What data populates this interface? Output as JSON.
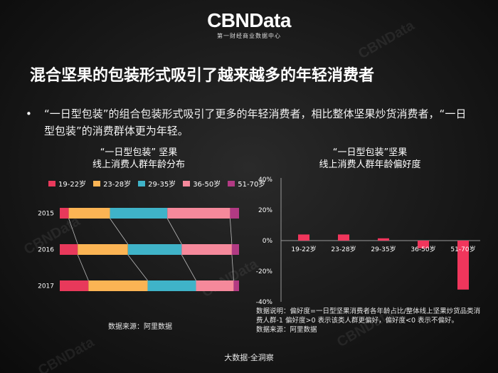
{
  "header": {
    "brand": "CBNData",
    "brand_sub": "第一财经商业数据中心"
  },
  "slide": {
    "title": "混合坚果的包装形式吸引了越来越多的年轻消费者",
    "bullet": "“一日型包装”的组合包装形式吸引了更多的年轻消费者，相比整体坚果炒货消费者，“一日型包装”的消费群体更为年轻。",
    "footer": "大数据·全洞察"
  },
  "left_chart": {
    "title_line1": "“一日型包装”  坚果",
    "title_line2": "线上消费人群年龄分布",
    "source": "数据来源：阿里数据"
  },
  "right_chart": {
    "title_line1": "“一日型包装”坚果",
    "title_line2": "线上消费人群年龄偏好度",
    "note": "数据说明：偏好度=一日型坚果消费者各年龄占比/整体线上坚果炒货品类消费人群-1 偏好度>0 表示该类人群更偏好，偏好度<0 表示不偏好。",
    "source": "数据来源：阿里数据"
  },
  "colors": {
    "19-22岁": "#e8395b",
    "23-28岁": "#fbb454",
    "29-35岁": "#3fb3c8",
    "36-50岁": "#f5899b",
    "51-70岁": "#b23a83",
    "preference_bar": "#f0365c"
  },
  "chart_data": [
    {
      "type": "bar",
      "orientation": "horizontal",
      "stacked": true,
      "percent": true,
      "categories": [
        "2015",
        "2016",
        "2017"
      ],
      "series": [
        {
          "name": "19-22岁",
          "values": [
            5,
            10,
            16
          ]
        },
        {
          "name": "23-28岁",
          "values": [
            23,
            28,
            33
          ]
        },
        {
          "name": "29-35岁",
          "values": [
            32,
            30,
            27
          ]
        },
        {
          "name": "36-50岁",
          "values": [
            35,
            28,
            21
          ]
        },
        {
          "name": "51-70岁",
          "values": [
            5,
            4,
            3
          ]
        }
      ],
      "legend": "top"
    },
    {
      "type": "bar",
      "categories": [
        "19-22岁",
        "23-28岁",
        "29-35岁",
        "36-50岁",
        "51-70岁"
      ],
      "values": [
        4,
        4,
        1.5,
        -5,
        -32
      ],
      "y_ticks": [
        "40%",
        "20%",
        "0%",
        "-20%",
        "-40%"
      ],
      "ylim": [
        -40,
        40
      ],
      "grid": false
    }
  ]
}
